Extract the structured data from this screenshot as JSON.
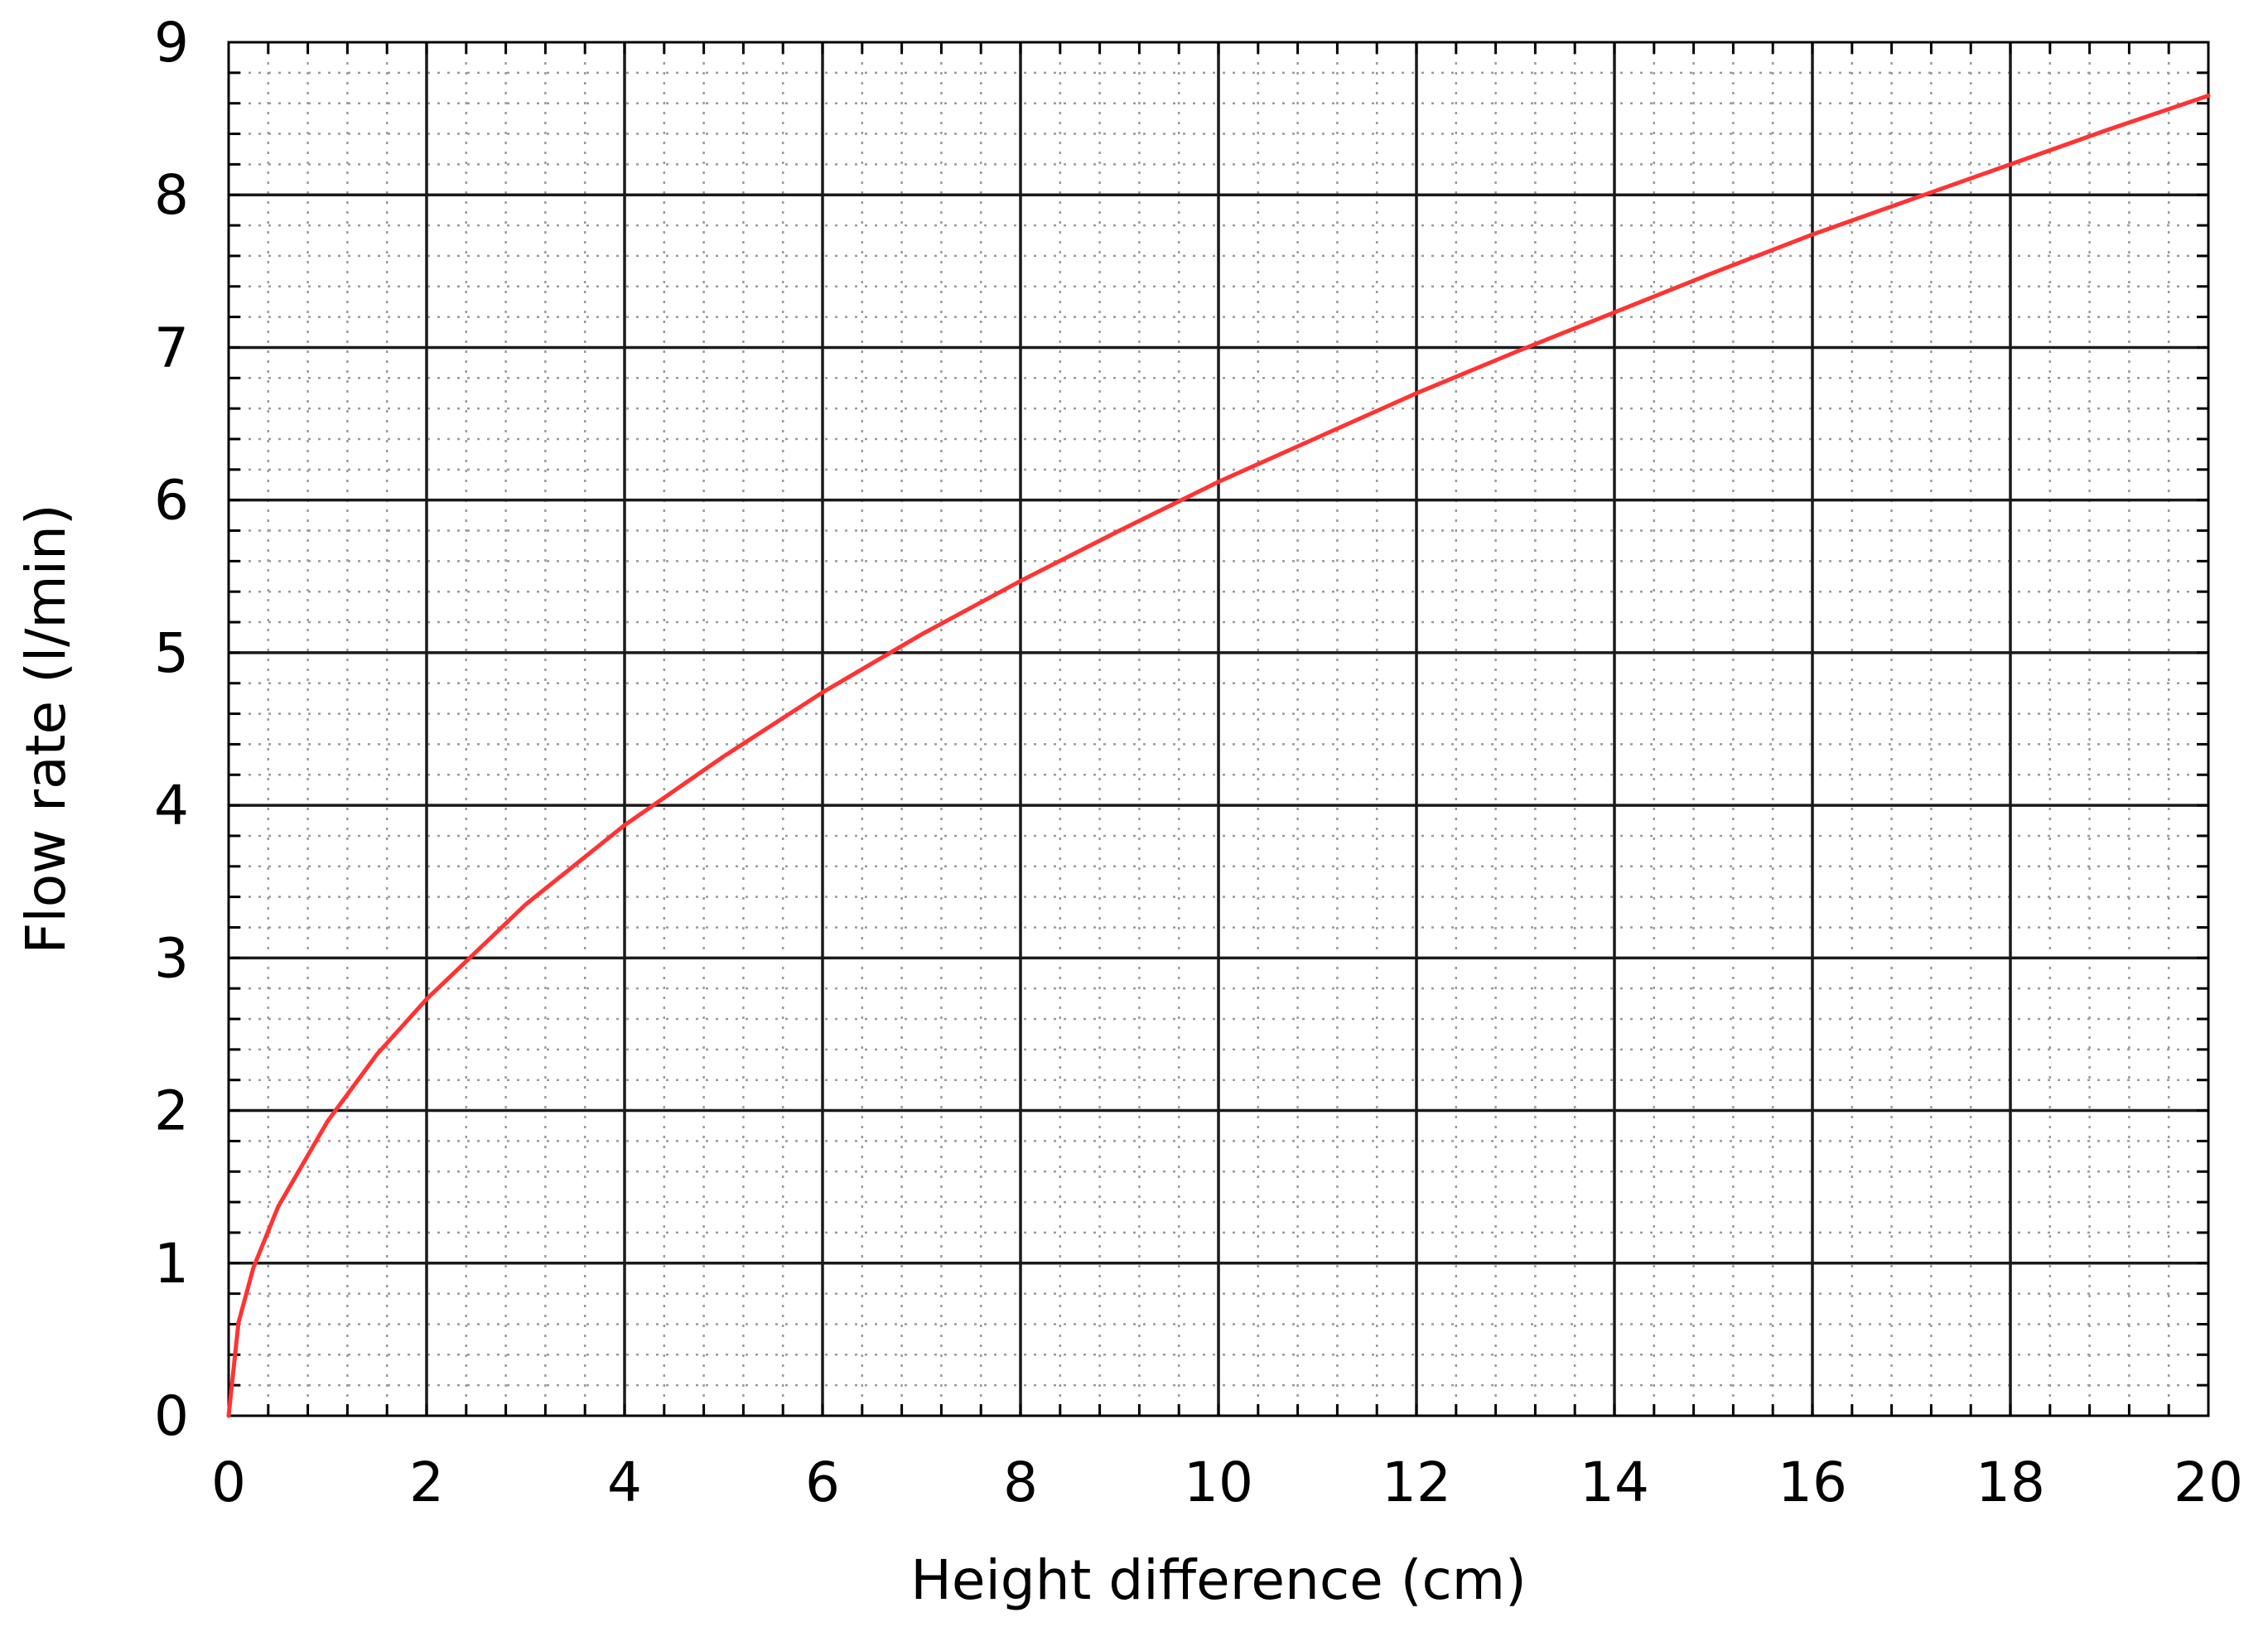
{
  "chart_data": {
    "type": "line",
    "xlabel": "Height difference (cm)",
    "ylabel": "Flow rate (l/min)",
    "xlim": [
      0,
      20
    ],
    "ylim": [
      0,
      9
    ],
    "x_ticks": [
      "0",
      "2",
      "4",
      "6",
      "8",
      "10",
      "12",
      "14",
      "16",
      "18",
      "20"
    ],
    "y_ticks": [
      "0",
      "1",
      "2",
      "3",
      "4",
      "5",
      "6",
      "7",
      "8",
      "9"
    ],
    "grid": {
      "major": true,
      "minor": true,
      "minor_style": "dotted"
    },
    "series": [
      {
        "color": "#ff3333",
        "x": [
          0,
          0.1,
          0.25,
          0.5,
          1,
          1.5,
          2,
          3,
          4,
          5,
          6,
          7,
          8,
          9,
          10,
          11,
          12,
          13,
          14,
          15,
          16,
          17,
          18,
          19,
          20
        ],
        "y": [
          0,
          0.61,
          0.97,
          1.37,
          1.93,
          2.37,
          2.73,
          3.35,
          3.87,
          4.32,
          4.74,
          5.12,
          5.47,
          5.8,
          6.12,
          6.41,
          6.7,
          6.97,
          7.23,
          7.49,
          7.74,
          7.97,
          8.2,
          8.43,
          8.65
        ]
      }
    ]
  }
}
